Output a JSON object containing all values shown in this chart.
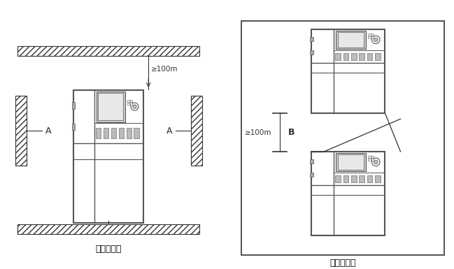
{
  "title_left": "单体安装图",
  "title_right": "上下安装图",
  "label_A": "A",
  "label_B": "B",
  "label_100m": "≥100m",
  "bg_color": "#ffffff",
  "line_color": "#333333",
  "dark_color": "#555555"
}
